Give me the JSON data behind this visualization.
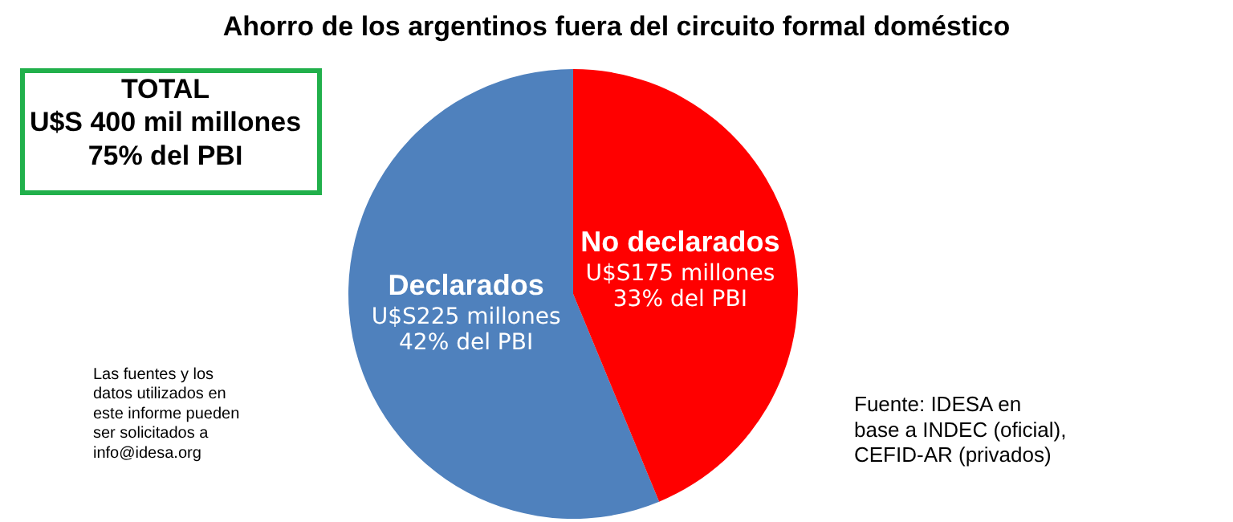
{
  "chart_data": {
    "type": "pie",
    "title": "Ahorro de los argentinos fuera del circuito formal doméstico",
    "categories": [
      "Declarados",
      "No declarados"
    ],
    "values": [
      225,
      175
    ],
    "colors": [
      "#4f81bd",
      "#ff0000"
    ],
    "value_labels": [
      "U$S225 millones\n42% del PBI",
      "U$S175 millones\n33% del PBI"
    ],
    "annotations": [
      "TOTAL\nU$S 400 mil millones\n75% del PBI",
      "Las fuentes y los\ndatos utilizados en\neste informe pueden\nser solicitados a\ninfo@idesa.org",
      "Fuente: IDESA en\nbase a INDEC (oficial),\nCEFID-AR (privados)"
    ]
  }
}
